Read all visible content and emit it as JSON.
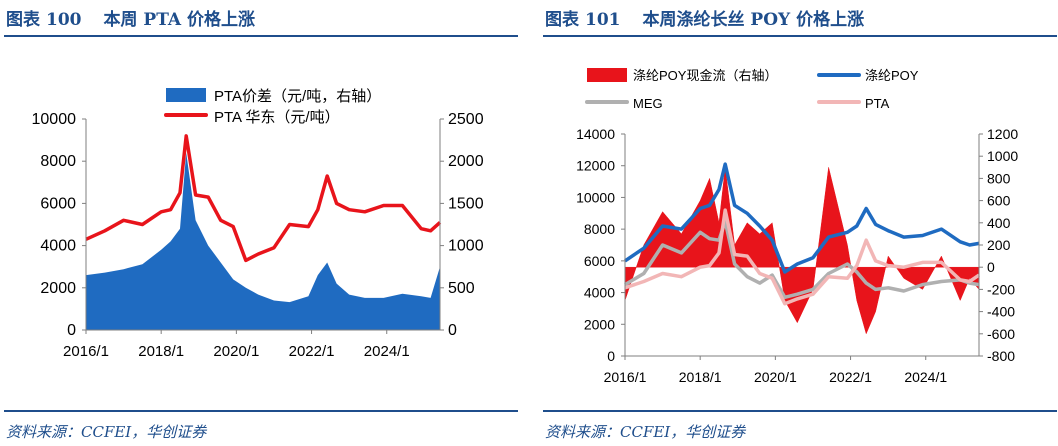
{
  "left": {
    "figure_label": "图表",
    "figure_number": "100",
    "title": "本周 PTA 价格上涨",
    "source": "资料来源：CCFEI，华创证券"
  },
  "right": {
    "figure_label": "图表",
    "figure_number": "101",
    "title": "本周涤纶长丝 POY 价格上涨",
    "source": "资料来源：CCFEI，华创证券"
  },
  "colors": {
    "heading": "#1f4e8c",
    "blue": "#1f6bc1",
    "red": "#e8141b",
    "gray": "#b0b0b0",
    "pink": "#f2b6b6"
  },
  "chart_data": [
    {
      "type": "bar+line",
      "title": "",
      "x_ticks": [
        "2016/1",
        "2018/1",
        "2020/1",
        "2022/1",
        "2024/1"
      ],
      "x_range": [
        "2016/1",
        "2025/6"
      ],
      "y_left": {
        "range": [
          0,
          10000
        ],
        "ticks": [
          "0",
          "2000",
          "4000",
          "6000",
          "8000",
          "10000"
        ]
      },
      "y_right": {
        "range": [
          0,
          2500
        ],
        "ticks": [
          "0",
          "500",
          "1000",
          "1500",
          "2000",
          "2500"
        ]
      },
      "legend_position": "top",
      "series": [
        {
          "name": "PTA价差（元/吨，右轴）",
          "type": "area",
          "axis": "right",
          "color": "#1f6bc1",
          "x": [
            "2016/1",
            "2016/7",
            "2017/1",
            "2017/7",
            "2018/1",
            "2018/4",
            "2018/7",
            "2018/9",
            "2018/12",
            "2019/4",
            "2019/8",
            "2019/12",
            "2020/4",
            "2020/8",
            "2021/1",
            "2021/6",
            "2021/12",
            "2022/3",
            "2022/6",
            "2022/9",
            "2023/1",
            "2023/6",
            "2023/12",
            "2024/6",
            "2024/12",
            "2025/3",
            "2025/6"
          ],
          "values": [
            650,
            680,
            720,
            780,
            950,
            1050,
            1200,
            2100,
            1300,
            1000,
            800,
            600,
            500,
            420,
            350,
            330,
            400,
            650,
            800,
            550,
            420,
            380,
            380,
            430,
            400,
            380,
            750
          ]
        },
        {
          "name": "PTA 华东（元/吨）",
          "type": "line",
          "axis": "left",
          "color": "#e8141b",
          "x": [
            "2016/1",
            "2016/7",
            "2017/1",
            "2017/7",
            "2018/1",
            "2018/4",
            "2018/7",
            "2018/9",
            "2018/12",
            "2019/4",
            "2019/8",
            "2019/12",
            "2020/4",
            "2020/8",
            "2021/1",
            "2021/6",
            "2021/12",
            "2022/3",
            "2022/6",
            "2022/9",
            "2023/1",
            "2023/6",
            "2023/12",
            "2024/6",
            "2024/12",
            "2025/3",
            "2025/6"
          ],
          "values": [
            4300,
            4700,
            5200,
            5000,
            5600,
            5700,
            6500,
            9200,
            6400,
            6300,
            5200,
            4900,
            3300,
            3600,
            3900,
            5000,
            4900,
            5700,
            7300,
            6000,
            5700,
            5600,
            5900,
            5900,
            4800,
            4700,
            5100
          ]
        }
      ]
    },
    {
      "type": "bar+line",
      "title": "",
      "x_ticks": [
        "2016/1",
        "2018/1",
        "2020/1",
        "2022/1",
        "2024/1"
      ],
      "x_range": [
        "2016/1",
        "2025/6"
      ],
      "y_left": {
        "range": [
          0,
          14000
        ],
        "ticks": [
          "0",
          "2000",
          "4000",
          "6000",
          "8000",
          "10000",
          "12000",
          "14000"
        ]
      },
      "y_right": {
        "range": [
          -800,
          1200
        ],
        "ticks": [
          "-800",
          "-600",
          "-400",
          "-200",
          "0",
          "200",
          "400",
          "600",
          "800",
          "1000",
          "1200"
        ]
      },
      "legend_position": "top",
      "series": [
        {
          "name": "涤纶POY现金流（右轴）",
          "type": "bar",
          "axis": "right",
          "color": "#e8141b",
          "x": [
            "2016/1",
            "2016/7",
            "2017/1",
            "2017/7",
            "2018/1",
            "2018/4",
            "2018/7",
            "2018/9",
            "2018/12",
            "2019/4",
            "2019/8",
            "2019/12",
            "2020/4",
            "2020/8",
            "2021/1",
            "2021/6",
            "2021/12",
            "2022/3",
            "2022/6",
            "2022/9",
            "2023/1",
            "2023/6",
            "2023/12",
            "2024/6",
            "2024/12",
            "2025/3",
            "2025/6"
          ],
          "values": [
            -300,
            200,
            500,
            300,
            600,
            800,
            400,
            900,
            200,
            400,
            300,
            400,
            -300,
            -500,
            -200,
            900,
            200,
            -300,
            -600,
            -400,
            100,
            -100,
            -200,
            100,
            -300,
            -100,
            -200
          ]
        },
        {
          "name": "涤纶POY",
          "type": "line",
          "axis": "left",
          "color": "#1f6bc1",
          "x": [
            "2016/1",
            "2016/7",
            "2017/1",
            "2017/7",
            "2018/1",
            "2018/4",
            "2018/7",
            "2018/9",
            "2018/12",
            "2019/4",
            "2019/8",
            "2019/12",
            "2020/4",
            "2020/8",
            "2021/1",
            "2021/6",
            "2021/12",
            "2022/3",
            "2022/6",
            "2022/9",
            "2023/1",
            "2023/6",
            "2023/12",
            "2024/6",
            "2024/12",
            "2025/3",
            "2025/6"
          ],
          "values": [
            6000,
            6800,
            8200,
            8000,
            9300,
            9500,
            10500,
            12100,
            9500,
            9000,
            8200,
            7300,
            5300,
            5800,
            6200,
            7500,
            7800,
            8200,
            9300,
            8300,
            7900,
            7500,
            7600,
            8000,
            7200,
            7000,
            7100
          ]
        },
        {
          "name": "MEG",
          "type": "line",
          "axis": "left",
          "color": "#b0b0b0",
          "x": [
            "2016/1",
            "2016/7",
            "2017/1",
            "2017/7",
            "2018/1",
            "2018/4",
            "2018/7",
            "2018/9",
            "2018/12",
            "2019/4",
            "2019/8",
            "2019/12",
            "2020/4",
            "2020/8",
            "2021/1",
            "2021/6",
            "2021/12",
            "2022/3",
            "2022/6",
            "2022/9",
            "2023/1",
            "2023/6",
            "2023/12",
            "2024/6",
            "2024/12",
            "2025/3",
            "2025/6"
          ],
          "values": [
            4500,
            5200,
            7000,
            6500,
            7800,
            7400,
            7300,
            8500,
            5800,
            5000,
            4600,
            5100,
            3700,
            3900,
            4200,
            5200,
            5800,
            5300,
            4600,
            4200,
            4300,
            4100,
            4500,
            4700,
            4800,
            4600,
            4500
          ]
        },
        {
          "name": "PTA",
          "type": "line",
          "axis": "left",
          "color": "#f2b6b6",
          "x": [
            "2016/1",
            "2016/7",
            "2017/1",
            "2017/7",
            "2018/1",
            "2018/4",
            "2018/7",
            "2018/9",
            "2018/12",
            "2019/4",
            "2019/8",
            "2019/12",
            "2020/4",
            "2020/8",
            "2021/1",
            "2021/6",
            "2021/12",
            "2022/3",
            "2022/6",
            "2022/9",
            "2023/1",
            "2023/6",
            "2023/12",
            "2024/6",
            "2024/12",
            "2025/3",
            "2025/6"
          ],
          "values": [
            4300,
            4700,
            5200,
            5000,
            5600,
            5700,
            6500,
            9200,
            6400,
            6300,
            5200,
            4900,
            3300,
            3600,
            3900,
            5000,
            4900,
            5700,
            7300,
            6000,
            5700,
            5600,
            5900,
            5900,
            4800,
            4700,
            5100
          ]
        }
      ]
    }
  ]
}
